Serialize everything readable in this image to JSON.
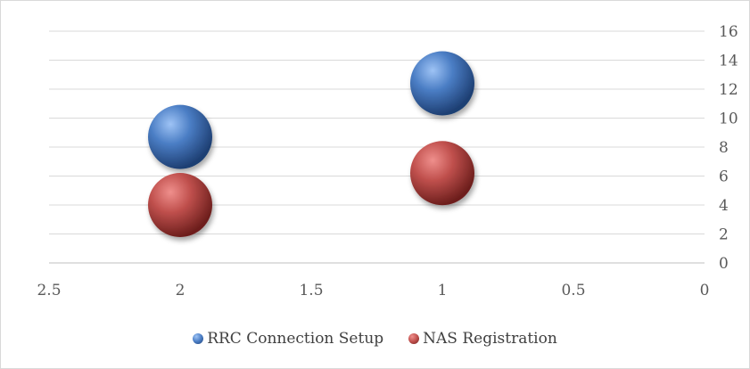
{
  "chart_data": {
    "type": "scatter",
    "title": "",
    "xlabel": "",
    "ylabel": "",
    "x_axis": {
      "reversed": true,
      "range": [
        0,
        2.5
      ],
      "ticks": [
        2.5,
        2,
        1.5,
        1,
        0.5,
        0
      ]
    },
    "y_axis": {
      "position": "right",
      "range": [
        0,
        16
      ],
      "ticks": [
        0,
        2,
        4,
        6,
        8,
        10,
        12,
        14,
        16
      ]
    },
    "grid": "horizontal",
    "legend_position": "bottom",
    "series": [
      {
        "name": "RRC Connection Setup",
        "color": "#4a7dc4",
        "points": [
          {
            "x": 2,
            "y": 8.7
          },
          {
            "x": 1,
            "y": 12.4
          }
        ]
      },
      {
        "name": "NAS Registration",
        "color": "#c0504d",
        "points": [
          {
            "x": 2,
            "y": 4.0
          },
          {
            "x": 1,
            "y": 6.2
          }
        ]
      }
    ]
  }
}
